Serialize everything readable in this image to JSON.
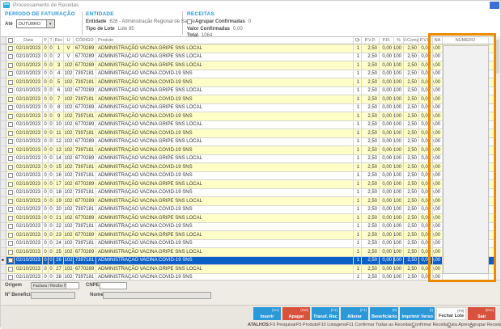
{
  "titlebar": {
    "title": "Processamento de Receitas"
  },
  "filters": {
    "periodo_section": "PERÍODO DE FATURAÇÃO",
    "ate_label": "Até",
    "periodo_value": "OUTUBRO",
    "entidade_section": "ENTIDADE",
    "entidade_label": "Entidade",
    "entidade_value": "628 - Administração Regional de Saúde",
    "tipo_lote_label": "Tipo de Lote",
    "tipo_lote_value": "Lote 95",
    "receitas_section": "RECEITAS",
    "agrupar_label": "Agrupar Confirmadas",
    "agrupar_count": "0",
    "valor_label": "Valor Confirmadas",
    "valor_value": "0,00",
    "total_label": "Total",
    "total_value": "1064"
  },
  "table": {
    "headers": [
      "Data",
      "P",
      "T",
      "Rec",
      "U",
      "CÓDIGO",
      "Produto",
      "Qt",
      "P.V.P.",
      "P.R.",
      "%",
      "V.Comp",
      "P.V.B.",
      "NA",
      "NÚMERO"
    ],
    "row_defaults": {
      "date": "02/10/2023",
      "p": "0",
      "t": "0",
      "qt": "1",
      "pvp": "2,50",
      "pr": "0,00",
      "pct": "100",
      "vcomp": "2,50",
      "pvb": "0,00",
      "na": "0,00",
      "numero": ""
    },
    "products": {
      "gripe": {
        "codigo": "6770289",
        "produto": "ADMINISTRAÇÃO VACINA GRIPE SNS LOCAL"
      },
      "covid": {
        "codigo": "7397181",
        "produto": "ADMINISTRAÇÃO VACINA COVID-19 SNS"
      }
    },
    "rows": [
      {
        "rec": "1",
        "u": "V",
        "product": "gripe"
      },
      {
        "rec": "2",
        "u": "V",
        "product": "gripe"
      },
      {
        "rec": "3",
        "u": "102",
        "product": "gripe"
      },
      {
        "rec": "4",
        "u": "102",
        "product": "covid"
      },
      {
        "rec": "5",
        "u": "102",
        "product": "covid"
      },
      {
        "rec": "6",
        "u": "102",
        "product": "gripe"
      },
      {
        "rec": "7",
        "u": "102",
        "product": "covid"
      },
      {
        "rec": "8",
        "u": "102",
        "product": "gripe"
      },
      {
        "rec": "9",
        "u": "102",
        "product": "covid"
      },
      {
        "rec": "10",
        "u": "102",
        "product": "gripe"
      },
      {
        "rec": "11",
        "u": "102",
        "product": "covid"
      },
      {
        "rec": "12",
        "u": "102",
        "product": "gripe"
      },
      {
        "rec": "13",
        "u": "102",
        "product": "covid"
      },
      {
        "rec": "14",
        "u": "102",
        "product": "gripe"
      },
      {
        "rec": "15",
        "u": "102",
        "product": "covid"
      },
      {
        "rec": "16",
        "u": "102",
        "product": "covid"
      },
      {
        "rec": "17",
        "u": "102",
        "product": "gripe"
      },
      {
        "rec": "18",
        "u": "102",
        "product": "covid"
      },
      {
        "rec": "19",
        "u": "102",
        "product": "gripe"
      },
      {
        "rec": "20",
        "u": "102",
        "product": "covid"
      },
      {
        "rec": "21",
        "u": "102",
        "product": "gripe"
      },
      {
        "rec": "22",
        "u": "102",
        "product": "covid"
      },
      {
        "rec": "23",
        "u": "102",
        "product": "gripe"
      },
      {
        "rec": "24",
        "u": "102",
        "product": "covid"
      },
      {
        "rec": "25",
        "u": "102",
        "product": "gripe"
      },
      {
        "rec": "26",
        "u": "102",
        "product": "covid",
        "selected": true
      },
      {
        "rec": "27",
        "u": "102",
        "product": "gripe"
      },
      {
        "rec": "28",
        "u": "102",
        "product": "covid"
      }
    ],
    "selected_rec": "26"
  },
  "details": {
    "origem_label": "Origem",
    "origem_value": "Factura / Recibo N.º 16/41",
    "cnpem_label": "CNPEM",
    "cnpem_value": "",
    "beneficiario_label": "Nº Beneficiário",
    "beneficiario_value": "",
    "nome_label": "Nome",
    "nome_value": ""
  },
  "actions": {
    "buttons": [
      {
        "label": "Inserir",
        "shortcut": "(Ins)",
        "style": "blue"
      },
      {
        "label": "Apagar",
        "shortcut": "(Del)",
        "style": "red"
      },
      {
        "label": "Transf. Rec",
        "shortcut": "(F2)",
        "style": "blue"
      },
      {
        "label": "Alterar",
        "shortcut": "(F4)",
        "style": "blue"
      },
      {
        "label": "Beneficiário",
        "shortcut": "(B)",
        "style": "blue"
      },
      {
        "label": "Imprimir Verso",
        "shortcut": "(I)",
        "style": "blue"
      },
      {
        "label": "Fechar Lote",
        "shortcut": "(F9)",
        "style": "white"
      },
      {
        "label": "Sair",
        "shortcut": "(Esc)",
        "style": "red"
      }
    ],
    "shortcuts_label": "ATALHOS:",
    "shortcuts": [
      {
        "text": "F3 Pesquisar",
        "u": false
      },
      {
        "text": "F5 Produto",
        "u": false
      },
      {
        "text": "F10 Listagens",
        "u": false
      },
      {
        "text": "F11 Confirmar Todas as Receitas",
        "u": false
      },
      {
        "text": "Confirmar Receita",
        "u": true
      },
      {
        "text": "Data Apres",
        "u": true
      },
      {
        "text": "Agrupar Receitas",
        "u": true
      }
    ]
  },
  "colors": {
    "accent_blue": "#2b98d8",
    "danger_red": "#d9523e",
    "row_yellow": "#ffffc8",
    "selected_blue": "#0b5fc5",
    "highlight_orange": "#eb8a00",
    "section_title_blue": "#2e97d5"
  }
}
